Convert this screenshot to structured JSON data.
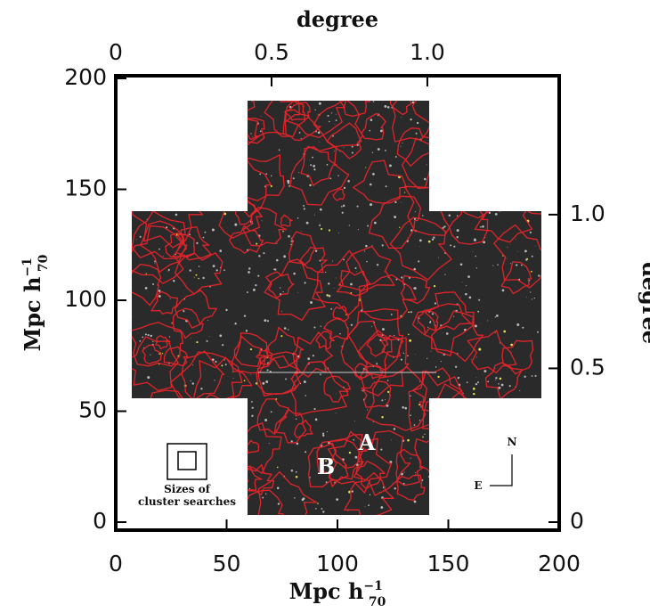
{
  "chart_data": {
    "type": "image",
    "xlabel": {
      "text": "Mpc h",
      "sup": "−1",
      "sub": "70"
    },
    "ylabel": {
      "text": "Mpc h",
      "sup": "−1",
      "sub": "70"
    },
    "x2label": "degree",
    "y2label": "degree",
    "xlim": [
      0,
      200
    ],
    "xticks": [
      0,
      50,
      100,
      150,
      200
    ],
    "ylim": [
      0,
      200
    ],
    "yticks": [
      0,
      50,
      100,
      150,
      200
    ],
    "x2lim": [
      0,
      1.423
    ],
    "x2ticks": [
      0,
      0.5,
      {
        "value": 1,
        "label": "1.0"
      }
    ],
    "y2lim": [
      0,
      1.443
    ],
    "y2ticks": [
      0,
      0.5,
      {
        "value": 1,
        "label": "1.0"
      }
    ],
    "annotations": {
      "a": "A",
      "b": "B",
      "north": "N",
      "east": "E",
      "inset_line1": "Sizes of",
      "inset_line2": "cluster searches"
    }
  }
}
